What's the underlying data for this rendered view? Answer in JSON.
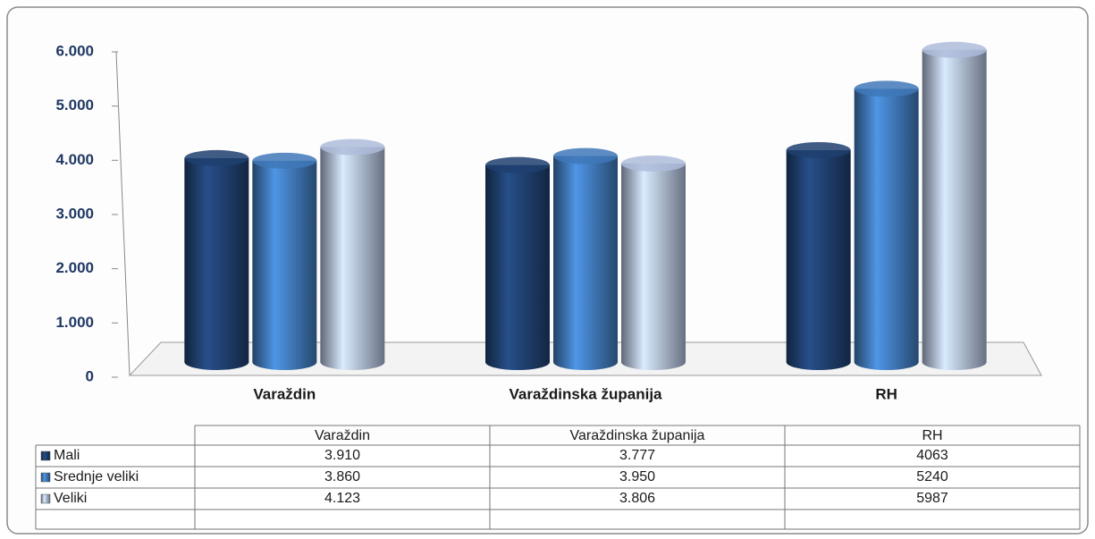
{
  "chart_data": {
    "type": "bar",
    "categories": [
      "Varaždin",
      "Varaždinska županija",
      "RH"
    ],
    "series": [
      {
        "name": "Mali",
        "color": "#1f3f6e",
        "values": [
          3910,
          3777,
          4063
        ],
        "value_labels": [
          "3.910",
          "3.777",
          "4063"
        ]
      },
      {
        "name": "Srednje veliki",
        "color": "#3f78b8",
        "values": [
          3860,
          3950,
          5240
        ],
        "value_labels": [
          "3.860",
          "3.950",
          "5240"
        ]
      },
      {
        "name": "Veliki",
        "color": "#aebcdb",
        "values": [
          4123,
          3806,
          5987
        ],
        "value_labels": [
          "4.123",
          "3.806",
          "5987"
        ]
      }
    ],
    "ylim": [
      0,
      6000
    ],
    "yticks": [
      0,
      {
        "value": 1000,
        "label": "1.000"
      },
      {
        "value": 2000,
        "label": "2.000"
      },
      {
        "value": 3000,
        "label": "3.000"
      },
      {
        "value": 4000,
        "label": "4.000"
      },
      {
        "value": 5000,
        "label": "5.000"
      },
      {
        "value": 6000,
        "label": "6.000"
      }
    ],
    "grid": false
  }
}
